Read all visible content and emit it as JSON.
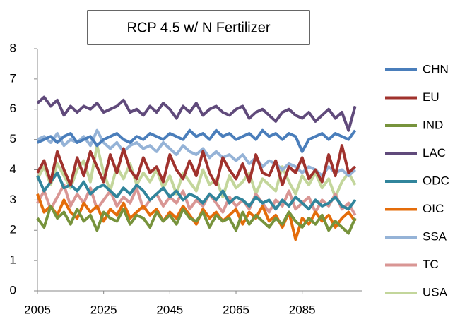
{
  "chart_data": {
    "type": "line",
    "title": "RCP 4.5 w/ N Fertilizer",
    "x": [
      2005,
      2007,
      2009,
      2011,
      2013,
      2015,
      2017,
      2019,
      2021,
      2023,
      2025,
      2027,
      2029,
      2031,
      2033,
      2035,
      2037,
      2039,
      2041,
      2043,
      2045,
      2047,
      2049,
      2051,
      2053,
      2055,
      2057,
      2059,
      2061,
      2063,
      2065,
      2067,
      2069,
      2071,
      2073,
      2075,
      2077,
      2079,
      2081,
      2083,
      2085,
      2087,
      2089,
      2091,
      2093,
      2095,
      2097,
      2099,
      2101
    ],
    "xlim": [
      2005,
      2103
    ],
    "xticks": [
      2005,
      2025,
      2045,
      2065,
      2085
    ],
    "ylim": [
      0,
      8
    ],
    "yticks": [
      0,
      1,
      2,
      3,
      4,
      5,
      6,
      7,
      8
    ],
    "legend": "right",
    "series": [
      {
        "name": "CHN",
        "color": "#4a7ebb",
        "values": [
          4.9,
          5.0,
          5.1,
          4.9,
          5.1,
          5.2,
          4.9,
          5.0,
          5.1,
          4.8,
          5.0,
          5.1,
          5.2,
          5.0,
          4.9,
          5.1,
          5.0,
          5.2,
          5.1,
          5.0,
          5.2,
          5.1,
          5.0,
          5.3,
          5.1,
          5.2,
          5.0,
          5.3,
          5.1,
          5.2,
          5.0,
          5.1,
          5.2,
          5.0,
          5.3,
          5.1,
          5.2,
          5.0,
          5.2,
          5.1,
          4.6,
          5.0,
          5.1,
          5.2,
          5.0,
          5.2,
          5.1,
          5.0,
          5.3
        ]
      },
      {
        "name": "EU",
        "color": "#a0322d",
        "values": [
          3.9,
          4.3,
          3.6,
          4.6,
          4.0,
          3.5,
          4.4,
          3.8,
          4.6,
          4.1,
          3.6,
          4.5,
          3.9,
          4.7,
          4.0,
          3.7,
          4.4,
          3.9,
          4.1,
          3.6,
          4.5,
          4.0,
          3.7,
          4.3,
          3.8,
          4.6,
          3.9,
          3.5,
          4.4,
          4.0,
          3.7,
          4.2,
          3.6,
          4.5,
          3.9,
          3.8,
          4.3,
          3.5,
          4.1,
          3.9,
          4.4,
          3.7,
          4.0,
          3.6,
          4.5,
          3.8,
          4.8,
          3.9,
          4.1
        ]
      },
      {
        "name": "IND",
        "color": "#77933c",
        "values": [
          2.4,
          2.1,
          2.8,
          2.4,
          2.6,
          2.2,
          2.7,
          2.3,
          2.5,
          2.0,
          2.6,
          2.4,
          2.3,
          2.7,
          2.2,
          2.5,
          2.4,
          2.1,
          2.6,
          2.3,
          2.5,
          2.2,
          2.7,
          2.4,
          2.3,
          2.6,
          2.1,
          2.5,
          2.3,
          2.4,
          2.0,
          2.6,
          2.2,
          2.5,
          2.3,
          2.1,
          2.4,
          2.2,
          2.6,
          2.3,
          2.1,
          2.4,
          2.2,
          2.5,
          2.0,
          2.3,
          2.1,
          1.9,
          2.4
        ]
      },
      {
        "name": "LAC",
        "color": "#604a7b",
        "values": [
          6.2,
          6.4,
          6.1,
          6.3,
          5.8,
          6.1,
          5.9,
          6.1,
          6.0,
          6.2,
          5.9,
          6.0,
          6.1,
          6.3,
          5.9,
          6.0,
          5.8,
          6.1,
          5.9,
          6.2,
          6.0,
          5.7,
          6.1,
          5.9,
          6.2,
          5.8,
          6.0,
          6.1,
          5.9,
          5.8,
          6.0,
          6.1,
          5.7,
          5.9,
          6.0,
          5.8,
          5.6,
          5.9,
          6.0,
          5.8,
          5.7,
          5.9,
          5.6,
          5.8,
          6.0,
          5.7,
          5.9,
          5.3,
          6.1
        ]
      },
      {
        "name": "ODC",
        "color": "#31859c",
        "values": [
          3.8,
          3.3,
          3.6,
          3.9,
          3.4,
          3.5,
          3.3,
          3.6,
          3.2,
          3.4,
          3.5,
          3.3,
          3.1,
          3.4,
          3.2,
          3.5,
          3.3,
          3.0,
          3.2,
          3.4,
          3.1,
          3.3,
          3.0,
          3.2,
          3.1,
          2.9,
          3.2,
          3.0,
          3.3,
          2.9,
          3.1,
          3.0,
          2.8,
          3.1,
          2.9,
          3.0,
          2.7,
          3.0,
          2.8,
          3.1,
          2.9,
          2.7,
          3.0,
          2.8,
          2.9,
          3.1,
          2.8,
          2.7,
          3.0
        ]
      },
      {
        "name": "OIC",
        "color": "#e46c0a",
        "values": [
          3.2,
          2.6,
          2.8,
          2.5,
          3.0,
          2.6,
          2.4,
          2.9,
          2.6,
          2.8,
          2.3,
          2.7,
          2.5,
          2.9,
          2.4,
          2.6,
          2.8,
          2.5,
          2.7,
          2.3,
          2.6,
          2.4,
          2.8,
          2.5,
          2.2,
          2.7,
          2.4,
          2.6,
          2.3,
          2.5,
          2.7,
          2.2,
          2.6,
          2.4,
          2.8,
          2.3,
          2.5,
          2.1,
          2.6,
          1.7,
          2.4,
          2.2,
          2.6,
          2.3,
          2.5,
          2.1,
          2.4,
          2.6,
          2.3
        ]
      },
      {
        "name": "SSA",
        "color": "#95b3d7",
        "values": [
          5.0,
          5.1,
          4.9,
          5.2,
          4.8,
          5.0,
          4.9,
          5.1,
          4.8,
          5.3,
          4.9,
          4.7,
          4.9,
          4.6,
          4.8,
          4.9,
          4.7,
          4.8,
          4.6,
          4.9,
          4.7,
          4.5,
          4.8,
          4.6,
          4.5,
          4.7,
          4.4,
          4.6,
          4.4,
          4.5,
          4.3,
          4.5,
          4.2,
          4.4,
          4.1,
          4.3,
          4.2,
          4.0,
          4.2,
          4.1,
          3.9,
          4.1,
          4.0,
          3.8,
          4.1,
          3.9,
          4.0,
          3.8,
          4.0
        ]
      },
      {
        "name": "TC",
        "color": "#d99694",
        "values": [
          2.9,
          3.3,
          2.7,
          3.1,
          3.5,
          2.8,
          3.2,
          2.9,
          3.4,
          2.7,
          3.0,
          3.3,
          2.8,
          3.1,
          2.9,
          3.4,
          2.7,
          3.0,
          3.2,
          2.8,
          3.1,
          2.9,
          3.3,
          2.7,
          3.0,
          2.8,
          3.2,
          2.9,
          2.6,
          3.1,
          2.8,
          3.0,
          2.7,
          3.2,
          2.9,
          2.6,
          3.0,
          2.8,
          3.3,
          2.7,
          2.9,
          3.1,
          2.6,
          3.0,
          2.8,
          3.2,
          2.7,
          2.9,
          2.5
        ]
      },
      {
        "name": "USA",
        "color": "#c3d69b",
        "values": [
          3.7,
          4.1,
          3.5,
          4.2,
          3.8,
          3.4,
          4.0,
          4.3,
          3.6,
          4.8,
          3.9,
          3.3,
          4.1,
          3.7,
          4.2,
          3.5,
          3.9,
          3.6,
          4.0,
          3.4,
          3.8,
          3.2,
          3.9,
          3.6,
          3.3,
          4.0,
          3.5,
          3.7,
          3.1,
          3.8,
          3.4,
          3.6,
          3.9,
          3.2,
          3.7,
          3.5,
          3.3,
          4.1,
          3.6,
          3.2,
          3.8,
          3.5,
          3.9,
          3.4,
          3.7,
          3.1,
          3.6,
          3.9,
          3.5
        ]
      }
    ]
  }
}
